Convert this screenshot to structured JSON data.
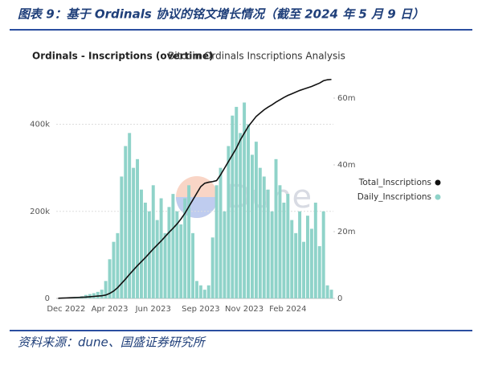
{
  "header": {
    "title": "图表 9：基于 Ordinals 协议的铭文增长情况（截至 2024 年 5 月 9 日）"
  },
  "chart_data": {
    "type": "bar",
    "title": "Ordinals - Inscriptions (overtime)",
    "subtitle": "Bitcoin Ordinals Inscriptions Analysis",
    "watermark": "Dune",
    "categories": [
      null,
      null,
      "Dec 2022",
      null,
      null,
      null,
      null,
      null,
      null,
      null,
      null,
      null,
      null,
      "Apr 2023",
      null,
      null,
      null,
      null,
      null,
      null,
      null,
      null,
      null,
      null,
      "Jun 2023",
      null,
      null,
      null,
      null,
      null,
      null,
      null,
      null,
      null,
      null,
      null,
      "Sep 2023",
      null,
      null,
      null,
      null,
      null,
      null,
      null,
      null,
      null,
      null,
      "Nov 2023",
      null,
      null,
      null,
      null,
      null,
      null,
      null,
      null,
      null,
      null,
      "Feb 2024",
      null,
      null,
      null,
      null,
      null,
      null,
      null,
      null,
      null,
      null,
      null
    ],
    "series": [
      {
        "name": "Total_Inscriptions",
        "type": "line",
        "axis": "y2",
        "color": "#111111",
        "values": [
          50000,
          100000,
          150000,
          200000,
          250000,
          300000,
          350000,
          400000,
          500000,
          600000,
          700000,
          800000,
          1000000,
          1500000,
          2200000,
          3200000,
          4500000,
          5800000,
          7200000,
          8500000,
          9800000,
          11000000,
          12200000,
          13500000,
          14800000,
          16000000,
          17200000,
          18500000,
          19800000,
          21000000,
          22300000,
          23800000,
          25500000,
          27500000,
          29500000,
          31500000,
          33500000,
          34500000,
          34800000,
          35000000,
          35300000,
          37000000,
          39000000,
          41000000,
          43000000,
          45000000,
          47500000,
          49500000,
          51500000,
          53000000,
          54500000,
          55500000,
          56500000,
          57300000,
          58000000,
          58800000,
          59500000,
          60200000,
          60800000,
          61300000,
          61800000,
          62300000,
          62700000,
          63100000,
          63500000,
          64000000,
          64500000,
          65200000,
          65500000,
          65600000
        ]
      },
      {
        "name": "Daily_Inscriptions",
        "type": "bar",
        "axis": "y",
        "color": "#8fd3c9",
        "values": [
          0,
          0,
          1000,
          1000,
          2000,
          3000,
          5000,
          8000,
          10000,
          12000,
          15000,
          20000,
          40000,
          90000,
          130000,
          150000,
          280000,
          350000,
          380000,
          300000,
          320000,
          250000,
          220000,
          200000,
          260000,
          180000,
          230000,
          150000,
          210000,
          240000,
          200000,
          170000,
          230000,
          260000,
          150000,
          40000,
          30000,
          20000,
          30000,
          140000,
          260000,
          300000,
          200000,
          350000,
          420000,
          440000,
          380000,
          450000,
          400000,
          330000,
          360000,
          300000,
          280000,
          250000,
          200000,
          320000,
          260000,
          220000,
          240000,
          180000,
          150000,
          200000,
          130000,
          190000,
          160000,
          220000,
          120000,
          200000,
          30000,
          20000
        ]
      }
    ],
    "ylim": [
      0,
      510000
    ],
    "yticks": [
      0,
      {
        "value": 200000,
        "label": "200k"
      },
      {
        "value": 400000,
        "label": "400k"
      }
    ],
    "y2lim": [
      0,
      66500000
    ],
    "y2ticks": [
      0,
      {
        "value": 20000000,
        "label": "20m"
      },
      {
        "value": 40000000,
        "label": "40m"
      },
      {
        "value": 60000000,
        "label": "60m"
      }
    ],
    "grid": true,
    "legend": "right"
  },
  "footer": {
    "source": "资料来源：dune、国盛证券研究所"
  }
}
